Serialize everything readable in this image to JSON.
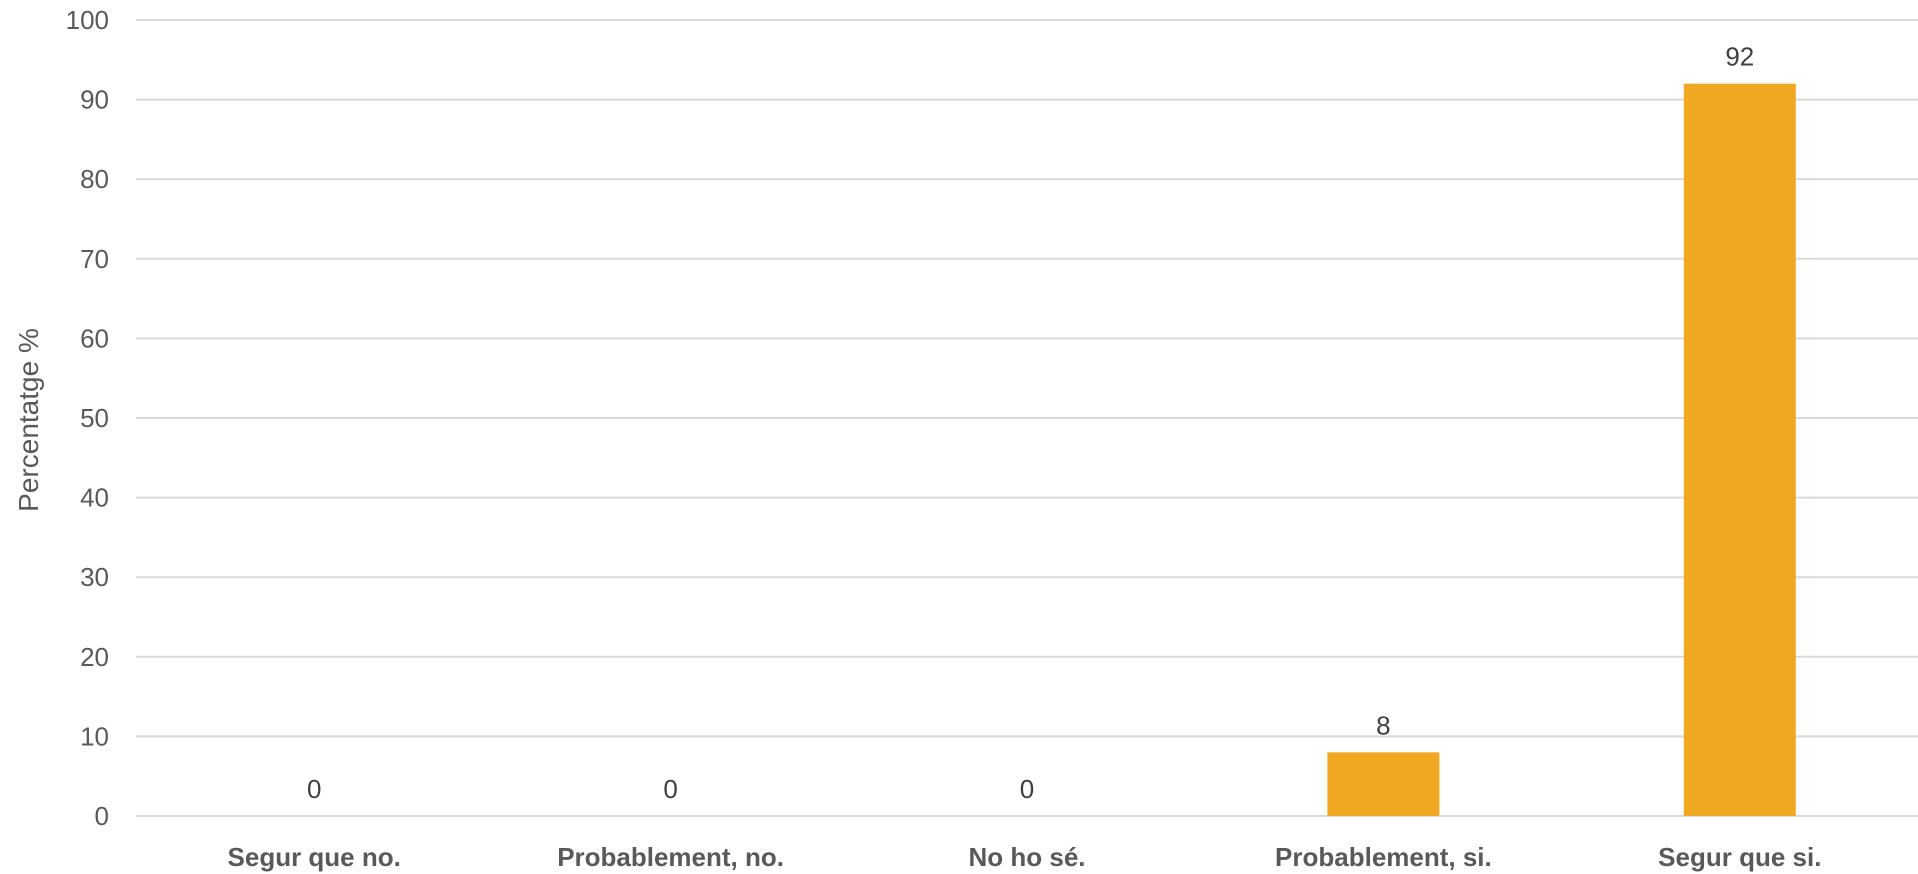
{
  "chart_data": {
    "type": "bar",
    "categories": [
      "Segur que no.",
      "Probablement, no.",
      "No ho sé.",
      "Probablement, si.",
      "Segur que si."
    ],
    "values": [
      0,
      0,
      0,
      8,
      92
    ],
    "data_labels": [
      "0",
      "0",
      "0",
      "8",
      "92"
    ],
    "ylabel": "Percentatge %",
    "xlabel": "",
    "ylim": [
      0,
      100
    ],
    "yticks": [
      0,
      10,
      20,
      30,
      40,
      50,
      60,
      70,
      80,
      90,
      100
    ],
    "ytick_labels": [
      "0",
      "10",
      "20",
      "30",
      "40",
      "50",
      "60",
      "70",
      "80",
      "90",
      "100"
    ],
    "grid": true,
    "legend": "none",
    "bar_color": "#F0A823",
    "grid_color": "#D9D9D9"
  }
}
